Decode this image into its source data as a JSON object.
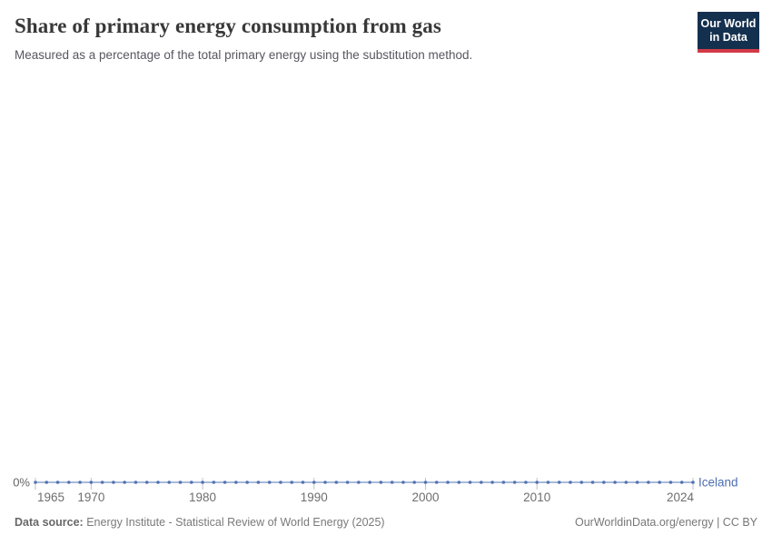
{
  "header": {
    "title": "Share of primary energy consumption from gas",
    "subtitle": "Measured as a percentage of the total primary energy using the substitution method.",
    "logo": {
      "line1": "Our World",
      "line2": "in Data",
      "bg_color": "#14304f",
      "bar_color": "#d23a47"
    }
  },
  "chart_data": {
    "type": "line",
    "title": "Share of primary energy consumption from gas",
    "unit": "%",
    "grid": false,
    "legend_position": "end-of-line-label",
    "xlim": [
      1965,
      2024
    ],
    "x": [
      1965,
      1966,
      1967,
      1968,
      1969,
      1970,
      1971,
      1972,
      1973,
      1974,
      1975,
      1976,
      1977,
      1978,
      1979,
      1980,
      1981,
      1982,
      1983,
      1984,
      1985,
      1986,
      1987,
      1988,
      1989,
      1990,
      1991,
      1992,
      1993,
      1994,
      1995,
      1996,
      1997,
      1998,
      1999,
      2000,
      2001,
      2002,
      2003,
      2004,
      2005,
      2006,
      2007,
      2008,
      2009,
      2010,
      2011,
      2012,
      2013,
      2014,
      2015,
      2016,
      2017,
      2018,
      2019,
      2020,
      2021,
      2022,
      2023,
      2024
    ],
    "series": [
      {
        "name": "Iceland",
        "color": "#4c6fb1",
        "values": [
          0,
          0,
          0,
          0,
          0,
          0,
          0,
          0,
          0,
          0,
          0,
          0,
          0,
          0,
          0,
          0,
          0,
          0,
          0,
          0,
          0,
          0,
          0,
          0,
          0,
          0,
          0,
          0,
          0,
          0,
          0,
          0,
          0,
          0,
          0,
          0,
          0,
          0,
          0,
          0,
          0,
          0,
          0,
          0,
          0,
          0,
          0,
          0,
          0,
          0,
          0,
          0,
          0,
          0,
          0,
          0,
          0,
          0,
          0,
          0
        ]
      }
    ],
    "x_tick_labels": [
      "1965",
      "1970",
      "1980",
      "1990",
      "2000",
      "2010",
      "2024"
    ],
    "y_tick_labels": [
      "0%"
    ],
    "colors": {
      "tick": "#c2c2c2",
      "tick_label": "#6e6e6e",
      "y_label": "#666666"
    }
  },
  "footer": {
    "datasource_label": "Data source:",
    "datasource_value": " Energy Institute - Statistical Review of World Energy (2025)",
    "credit": "OurWorldinData.org/energy | CC BY"
  }
}
